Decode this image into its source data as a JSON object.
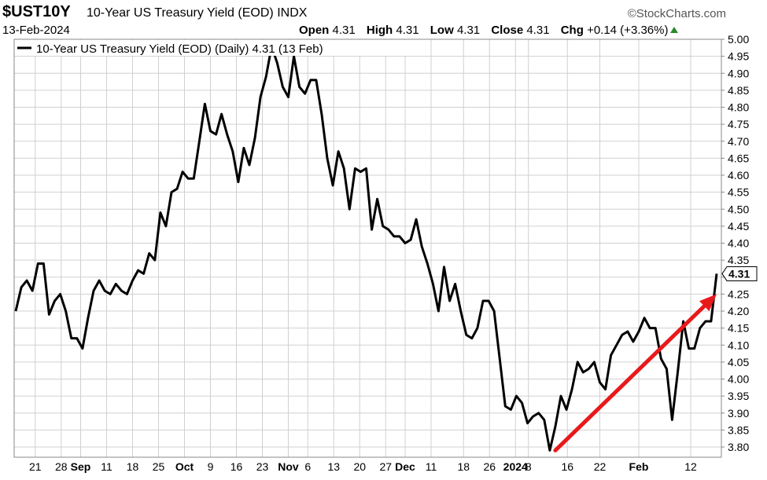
{
  "header": {
    "symbol": "$UST10Y",
    "name": "10-Year US Treasury Yield (EOD)",
    "exchange": "INDX",
    "brand": "©StockCharts.com",
    "date": "13-Feb-2024",
    "open_label": "Open",
    "open": "4.31",
    "high_label": "High",
    "high": "4.31",
    "low_label": "Low",
    "low": "4.31",
    "close_label": "Close",
    "close": "4.31",
    "chg_label": "Chg",
    "chg": "+0.14 (+3.36%)"
  },
  "legend": "10-Year US Treasury Yield (EOD) (Daily) 4.31 (13 Feb)",
  "last_value_label": "4.31",
  "colors": {
    "line": "#000000",
    "arrow": "#e8191b",
    "grid": "#d0d0d0",
    "up": "#2a8a2a"
  },
  "chart_data": {
    "type": "line",
    "series": [
      {
        "name": "10-Year US Treasury Yield (EOD) (Daily)",
        "y": [
          4.2,
          4.27,
          4.29,
          4.26,
          4.34,
          4.34,
          4.19,
          4.23,
          4.25,
          4.2,
          4.12,
          4.12,
          4.09,
          4.18,
          4.26,
          4.29,
          4.26,
          4.25,
          4.28,
          4.26,
          4.25,
          4.29,
          4.32,
          4.31,
          4.37,
          4.35,
          4.49,
          4.45,
          4.55,
          4.56,
          4.61,
          4.59,
          4.59,
          4.7,
          4.81,
          4.73,
          4.72,
          4.78,
          4.72,
          4.67,
          4.58,
          4.68,
          4.63,
          4.71,
          4.83,
          4.89,
          4.98,
          4.93,
          4.86,
          4.83,
          4.95,
          4.86,
          4.84,
          4.88,
          4.88,
          4.78,
          4.65,
          4.57,
          4.67,
          4.62,
          4.5,
          4.62,
          4.61,
          4.62,
          4.44,
          4.53,
          4.45,
          4.44,
          4.42,
          4.42,
          4.4,
          4.41,
          4.47,
          4.39,
          4.34,
          4.28,
          4.2,
          4.33,
          4.23,
          4.28,
          4.2,
          4.13,
          4.12,
          4.15,
          4.23,
          4.23,
          4.2,
          4.06,
          3.92,
          3.91,
          3.95,
          3.93,
          3.87,
          3.89,
          3.9,
          3.88,
          3.79,
          3.86,
          3.95,
          3.91,
          3.97,
          4.05,
          4.02,
          4.03,
          4.05,
          3.99,
          3.97,
          4.07,
          4.1,
          4.13,
          4.14,
          4.11,
          4.14,
          4.18,
          4.15,
          4.15,
          4.06,
          4.03,
          3.88,
          4.02,
          4.17,
          4.09,
          4.09,
          4.15,
          4.17,
          4.17,
          4.31
        ]
      }
    ],
    "x_tick_labels": [
      "21",
      "28",
      "Sep",
      "11",
      "18",
      "25",
      "Oct",
      "9",
      "16",
      "23",
      "Nov",
      "6",
      "13",
      "20",
      "27",
      "Dec",
      "11",
      "18",
      "26",
      "2024",
      "8",
      "16",
      "22",
      "Feb",
      "12"
    ],
    "y_tick_labels": [
      "5.00",
      "4.95",
      "4.90",
      "4.85",
      "4.80",
      "4.75",
      "4.70",
      "4.65",
      "4.60",
      "4.55",
      "4.50",
      "4.45",
      "4.40",
      "4.35",
      "4.30",
      "4.25",
      "4.20",
      "4.15",
      "4.10",
      "4.05",
      "4.00",
      "3.95",
      "3.90",
      "3.85",
      "3.80"
    ],
    "ylim": [
      3.77,
      5.0
    ],
    "grid": true,
    "annotations": [
      {
        "type": "arrow",
        "from": {
          "index": 97,
          "value": 3.79
        },
        "to": {
          "index": 126,
          "value": 4.25
        }
      }
    ]
  }
}
